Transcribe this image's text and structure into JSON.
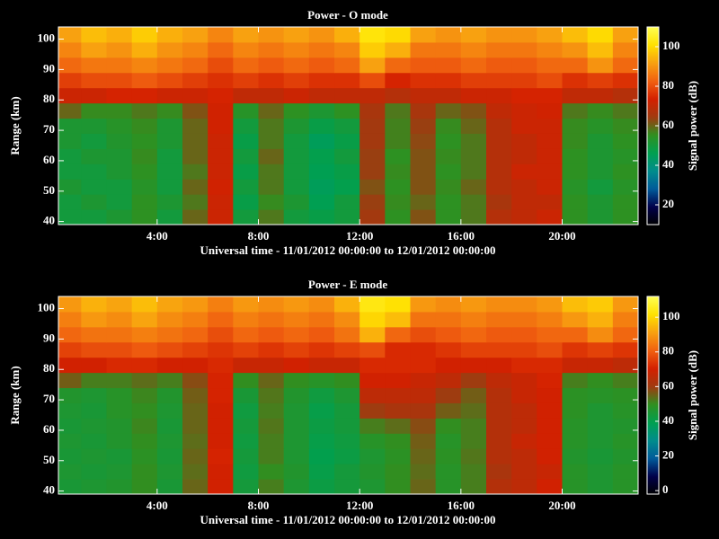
{
  "chart_data": [
    {
      "type": "heatmap",
      "title": "Power - O mode",
      "xlabel": "Universal time - 11/01/2012 00:00:00 to 12/01/2012 00:00:00",
      "ylabel": "Range (km)",
      "colorbar_label": "Signal power (dB)",
      "xlim": [
        0.1,
        23
      ],
      "ylim": [
        39,
        104
      ],
      "zlim": [
        10,
        110
      ],
      "xticks": [
        {
          "value": 4,
          "label": "4:00"
        },
        {
          "value": 8,
          "label": "8:00"
        },
        {
          "value": 12,
          "label": "12:00"
        },
        {
          "value": 16,
          "label": "16:00"
        },
        {
          "value": 20,
          "label": "20:00"
        }
      ],
      "yticks": [
        40,
        50,
        60,
        70,
        80,
        90,
        100
      ],
      "zticks": [
        20,
        40,
        60,
        80,
        100
      ],
      "colormap": [
        "#000000",
        "#00004a",
        "#005a9a",
        "#008c8c",
        "#00a050",
        "#2f9020",
        "#a03a10",
        "#d42000",
        "#f06010",
        "#f8a010",
        "#ffe000",
        "#ffff50"
      ],
      "xbins": [
        0.1,
        1,
        2,
        3,
        4,
        5,
        6,
        7,
        8,
        9,
        10,
        11,
        12,
        13,
        14,
        15,
        16,
        17,
        18,
        19,
        20,
        21,
        22,
        23
      ],
      "ybins": [
        39,
        44,
        49,
        54,
        59,
        64,
        69,
        74,
        79,
        84,
        89,
        94,
        99,
        104
      ],
      "z": [
        [
          50,
          50,
          52,
          55,
          50,
          60,
          72,
          50,
          58,
          50,
          48,
          50,
          65,
          55,
          62,
          55,
          58,
          68,
          70,
          72,
          55,
          52,
          55
        ],
        [
          50,
          52,
          50,
          55,
          52,
          58,
          72,
          48,
          56,
          52,
          46,
          50,
          64,
          56,
          60,
          55,
          58,
          66,
          70,
          70,
          55,
          52,
          55
        ],
        [
          52,
          50,
          50,
          54,
          50,
          60,
          73,
          50,
          58,
          50,
          45,
          47,
          62,
          55,
          62,
          56,
          60,
          68,
          70,
          72,
          54,
          50,
          54
        ],
        [
          50,
          50,
          52,
          55,
          50,
          58,
          72,
          48,
          58,
          50,
          46,
          48,
          64,
          56,
          62,
          55,
          58,
          68,
          72,
          72,
          55,
          52,
          55
        ],
        [
          50,
          52,
          52,
          56,
          50,
          60,
          72,
          50,
          60,
          50,
          47,
          50,
          64,
          55,
          62,
          56,
          58,
          68,
          70,
          72,
          55,
          52,
          54
        ],
        [
          52,
          50,
          53,
          55,
          52,
          60,
          72,
          48,
          58,
          50,
          45,
          48,
          65,
          57,
          63,
          55,
          58,
          68,
          70,
          72,
          56,
          52,
          55
        ],
        [
          52,
          52,
          54,
          56,
          52,
          60,
          73,
          50,
          58,
          52,
          48,
          50,
          65,
          57,
          64,
          56,
          60,
          68,
          72,
          72,
          56,
          54,
          56
        ],
        [
          60,
          56,
          56,
          58,
          56,
          62,
          73,
          54,
          60,
          55,
          52,
          55,
          66,
          58,
          66,
          60,
          62,
          70,
          72,
          73,
          58,
          56,
          58
        ],
        [
          72,
          72,
          74,
          74,
          72,
          72,
          74,
          70,
          70,
          72,
          70,
          70,
          70,
          68,
          70,
          70,
          72,
          72,
          74,
          74,
          70,
          70,
          68
        ],
        [
          78,
          80,
          80,
          82,
          80,
          78,
          76,
          78,
          76,
          78,
          76,
          76,
          80,
          74,
          76,
          76,
          78,
          78,
          78,
          80,
          76,
          78,
          76
        ],
        [
          84,
          86,
          86,
          88,
          86,
          84,
          80,
          84,
          82,
          84,
          82,
          84,
          92,
          84,
          82,
          82,
          84,
          82,
          82,
          84,
          84,
          90,
          84
        ],
        [
          88,
          92,
          90,
          94,
          90,
          88,
          84,
          88,
          86,
          88,
          86,
          88,
          98,
          94,
          86,
          86,
          88,
          86,
          86,
          88,
          90,
          96,
          88
        ],
        [
          92,
          96,
          94,
          98,
          94,
          92,
          88,
          92,
          90,
          92,
          90,
          94,
          102,
          100,
          92,
          90,
          92,
          90,
          90,
          92,
          96,
          100,
          92
        ]
      ]
    },
    {
      "type": "heatmap",
      "title": "Power - E mode",
      "xlabel": "Universal time - 11/01/2012 00:00:00 to 12/01/2012 00:00:00",
      "ylabel": "Range (km)",
      "colorbar_label": "Signal power (dB)",
      "xlim": [
        0.1,
        23
      ],
      "ylim": [
        39,
        104
      ],
      "zlim": [
        -2,
        112
      ],
      "xticks": [
        {
          "value": 4,
          "label": "4:00"
        },
        {
          "value": 8,
          "label": "8:00"
        },
        {
          "value": 12,
          "label": "12:00"
        },
        {
          "value": 16,
          "label": "16:00"
        },
        {
          "value": 20,
          "label": "20:00"
        }
      ],
      "yticks": [
        40,
        50,
        60,
        70,
        80,
        90,
        100
      ],
      "zticks": [
        0,
        20,
        40,
        60,
        80,
        100
      ],
      "colormap": [
        "#000000",
        "#00004a",
        "#005a9a",
        "#008c8c",
        "#00a050",
        "#2f9020",
        "#a03a10",
        "#d42000",
        "#f06010",
        "#f8a010",
        "#ffe000",
        "#ffff50"
      ],
      "xbins": [
        0.1,
        1,
        2,
        3,
        4,
        5,
        6,
        7,
        8,
        9,
        10,
        11,
        12,
        13,
        14,
        15,
        16,
        17,
        18,
        19,
        20,
        21,
        22,
        23
      ],
      "ybins": [
        39,
        44,
        49,
        54,
        59,
        64,
        69,
        74,
        79,
        84,
        89,
        94,
        99,
        104
      ],
      "z": [
        [
          45,
          46,
          47,
          50,
          45,
          55,
          70,
          44,
          52,
          46,
          42,
          44,
          46,
          50,
          55,
          48,
          52,
          64,
          66,
          70,
          48,
          46,
          48
        ],
        [
          46,
          45,
          46,
          50,
          46,
          54,
          70,
          43,
          50,
          47,
          41,
          44,
          47,
          50,
          54,
          48,
          52,
          62,
          66,
          68,
          48,
          46,
          48
        ],
        [
          45,
          46,
          45,
          49,
          45,
          55,
          71,
          44,
          52,
          46,
          40,
          42,
          46,
          49,
          55,
          49,
          53,
          64,
          66,
          70,
          47,
          45,
          47
        ],
        [
          46,
          45,
          47,
          50,
          46,
          54,
          70,
          43,
          52,
          46,
          41,
          43,
          48,
          50,
          56,
          48,
          52,
          64,
          68,
          70,
          48,
          46,
          48
        ],
        [
          45,
          46,
          47,
          51,
          45,
          55,
          70,
          44,
          53,
          46,
          42,
          44,
          52,
          54,
          58,
          50,
          52,
          64,
          66,
          70,
          48,
          46,
          47
        ],
        [
          46,
          45,
          48,
          50,
          46,
          55,
          70,
          43,
          52,
          46,
          41,
          44,
          60,
          62,
          62,
          56,
          54,
          64,
          66,
          70,
          49,
          46,
          48
        ],
        [
          47,
          46,
          48,
          51,
          47,
          56,
          71,
          45,
          53,
          47,
          43,
          46,
          66,
          66,
          66,
          60,
          56,
          64,
          68,
          70,
          49,
          48,
          49
        ],
        [
          56,
          52,
          52,
          54,
          52,
          58,
          71,
          50,
          55,
          50,
          48,
          50,
          70,
          70,
          68,
          66,
          60,
          66,
          68,
          71,
          52,
          50,
          52
        ],
        [
          70,
          70,
          72,
          72,
          70,
          70,
          72,
          68,
          68,
          70,
          68,
          68,
          72,
          72,
          72,
          70,
          70,
          70,
          72,
          72,
          68,
          68,
          66
        ],
        [
          76,
          78,
          78,
          80,
          78,
          76,
          74,
          76,
          74,
          76,
          74,
          76,
          78,
          72,
          72,
          74,
          76,
          76,
          76,
          78,
          74,
          76,
          74
        ],
        [
          82,
          84,
          84,
          86,
          84,
          82,
          78,
          82,
          80,
          82,
          80,
          84,
          94,
          82,
          78,
          80,
          82,
          80,
          80,
          82,
          82,
          88,
          82
        ],
        [
          86,
          90,
          88,
          92,
          88,
          86,
          82,
          86,
          84,
          86,
          84,
          88,
          100,
          96,
          84,
          84,
          86,
          84,
          84,
          86,
          90,
          94,
          86
        ],
        [
          90,
          94,
          92,
          96,
          92,
          90,
          86,
          90,
          88,
          90,
          88,
          94,
          104,
          102,
          90,
          88,
          90,
          88,
          88,
          90,
          96,
          98,
          90
        ]
      ]
    }
  ]
}
